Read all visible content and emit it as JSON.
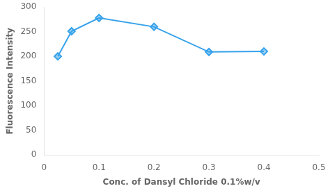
{
  "chart_data": {
    "type": "line",
    "x": [
      0.025,
      0.05,
      0.1,
      0.2,
      0.3,
      0.4
    ],
    "values": [
      200,
      251,
      278,
      260,
      209,
      210
    ],
    "xlabel": "Conc. of Dansyl Chloride 0.1%w/v",
    "ylabel": "Fluorescence Intensity",
    "xlim": [
      0,
      0.5
    ],
    "ylim": [
      0,
      300
    ],
    "xticks": [
      0,
      0.1,
      0.2,
      0.3,
      0.4,
      0.5
    ],
    "yticks": [
      0,
      50,
      100,
      150,
      200,
      250,
      300
    ],
    "grid": false,
    "marker": "diamond"
  }
}
